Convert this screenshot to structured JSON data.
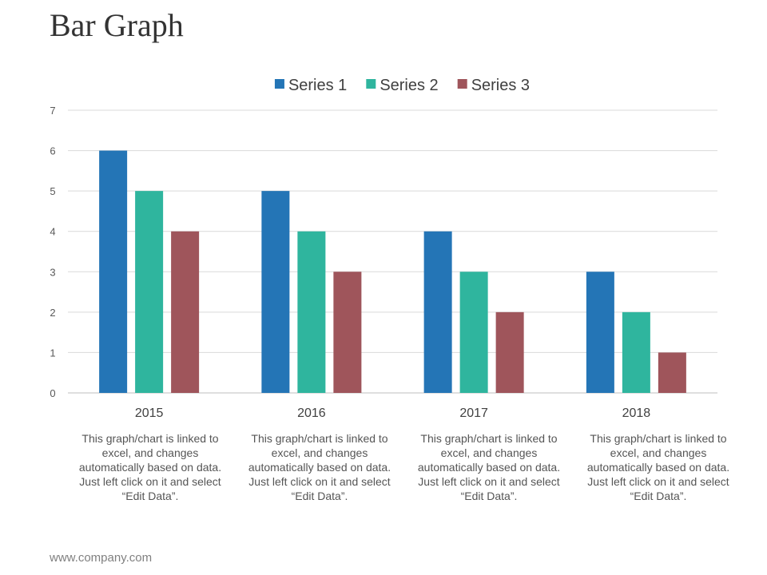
{
  "page": {
    "title": "Bar Graph",
    "footer": "www.company.com",
    "descriptions": [
      "This graph/chart is linked to excel, and changes automatically based on data. Just left click on it and select “Edit Data”.",
      "This graph/chart is linked to excel, and changes automatically based on data. Just left click on it and select “Edit Data”.",
      "This graph/chart is linked to excel, and changes automatically based on data. Just left click on it and select “Edit Data”.",
      "This graph/chart is linked to excel, and changes automatically based on data. Just left click on it and select “Edit Data”."
    ]
  },
  "chart_data": {
    "type": "bar",
    "title": "",
    "xlabel": "",
    "ylabel": "",
    "categories": [
      "2015",
      "2016",
      "2017",
      "2018"
    ],
    "series": [
      {
        "name": "Series 1",
        "values": [
          6,
          5,
          4,
          3
        ],
        "color": "#2475b6"
      },
      {
        "name": "Series 2",
        "values": [
          5,
          4,
          3,
          2
        ],
        "color": "#2fb59e"
      },
      {
        "name": "Series 3",
        "values": [
          4,
          3,
          2,
          1
        ],
        "color": "#9f555b"
      }
    ],
    "ylim": [
      0,
      7
    ],
    "yticks": [
      0,
      1,
      2,
      3,
      4,
      5,
      6,
      7
    ],
    "grid": true,
    "legend": "top-center"
  }
}
